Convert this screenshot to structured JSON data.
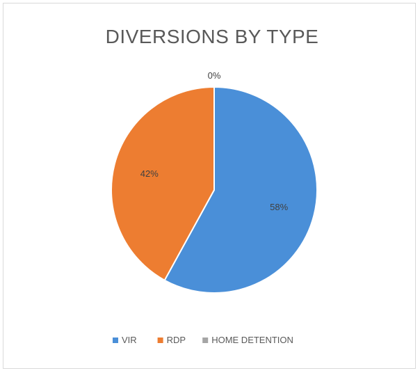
{
  "chart_data": {
    "type": "pie",
    "title": "DIVERSIONS BY TYPE",
    "categories": [
      "VIR",
      "RDP",
      "HOME DETENTION"
    ],
    "values": [
      58,
      42,
      0
    ],
    "data_labels": [
      "58%",
      "42%",
      "0%"
    ],
    "colors": [
      "#4a8fd8",
      "#ed7d31",
      "#a5a5a5"
    ],
    "legend_position": "bottom"
  }
}
